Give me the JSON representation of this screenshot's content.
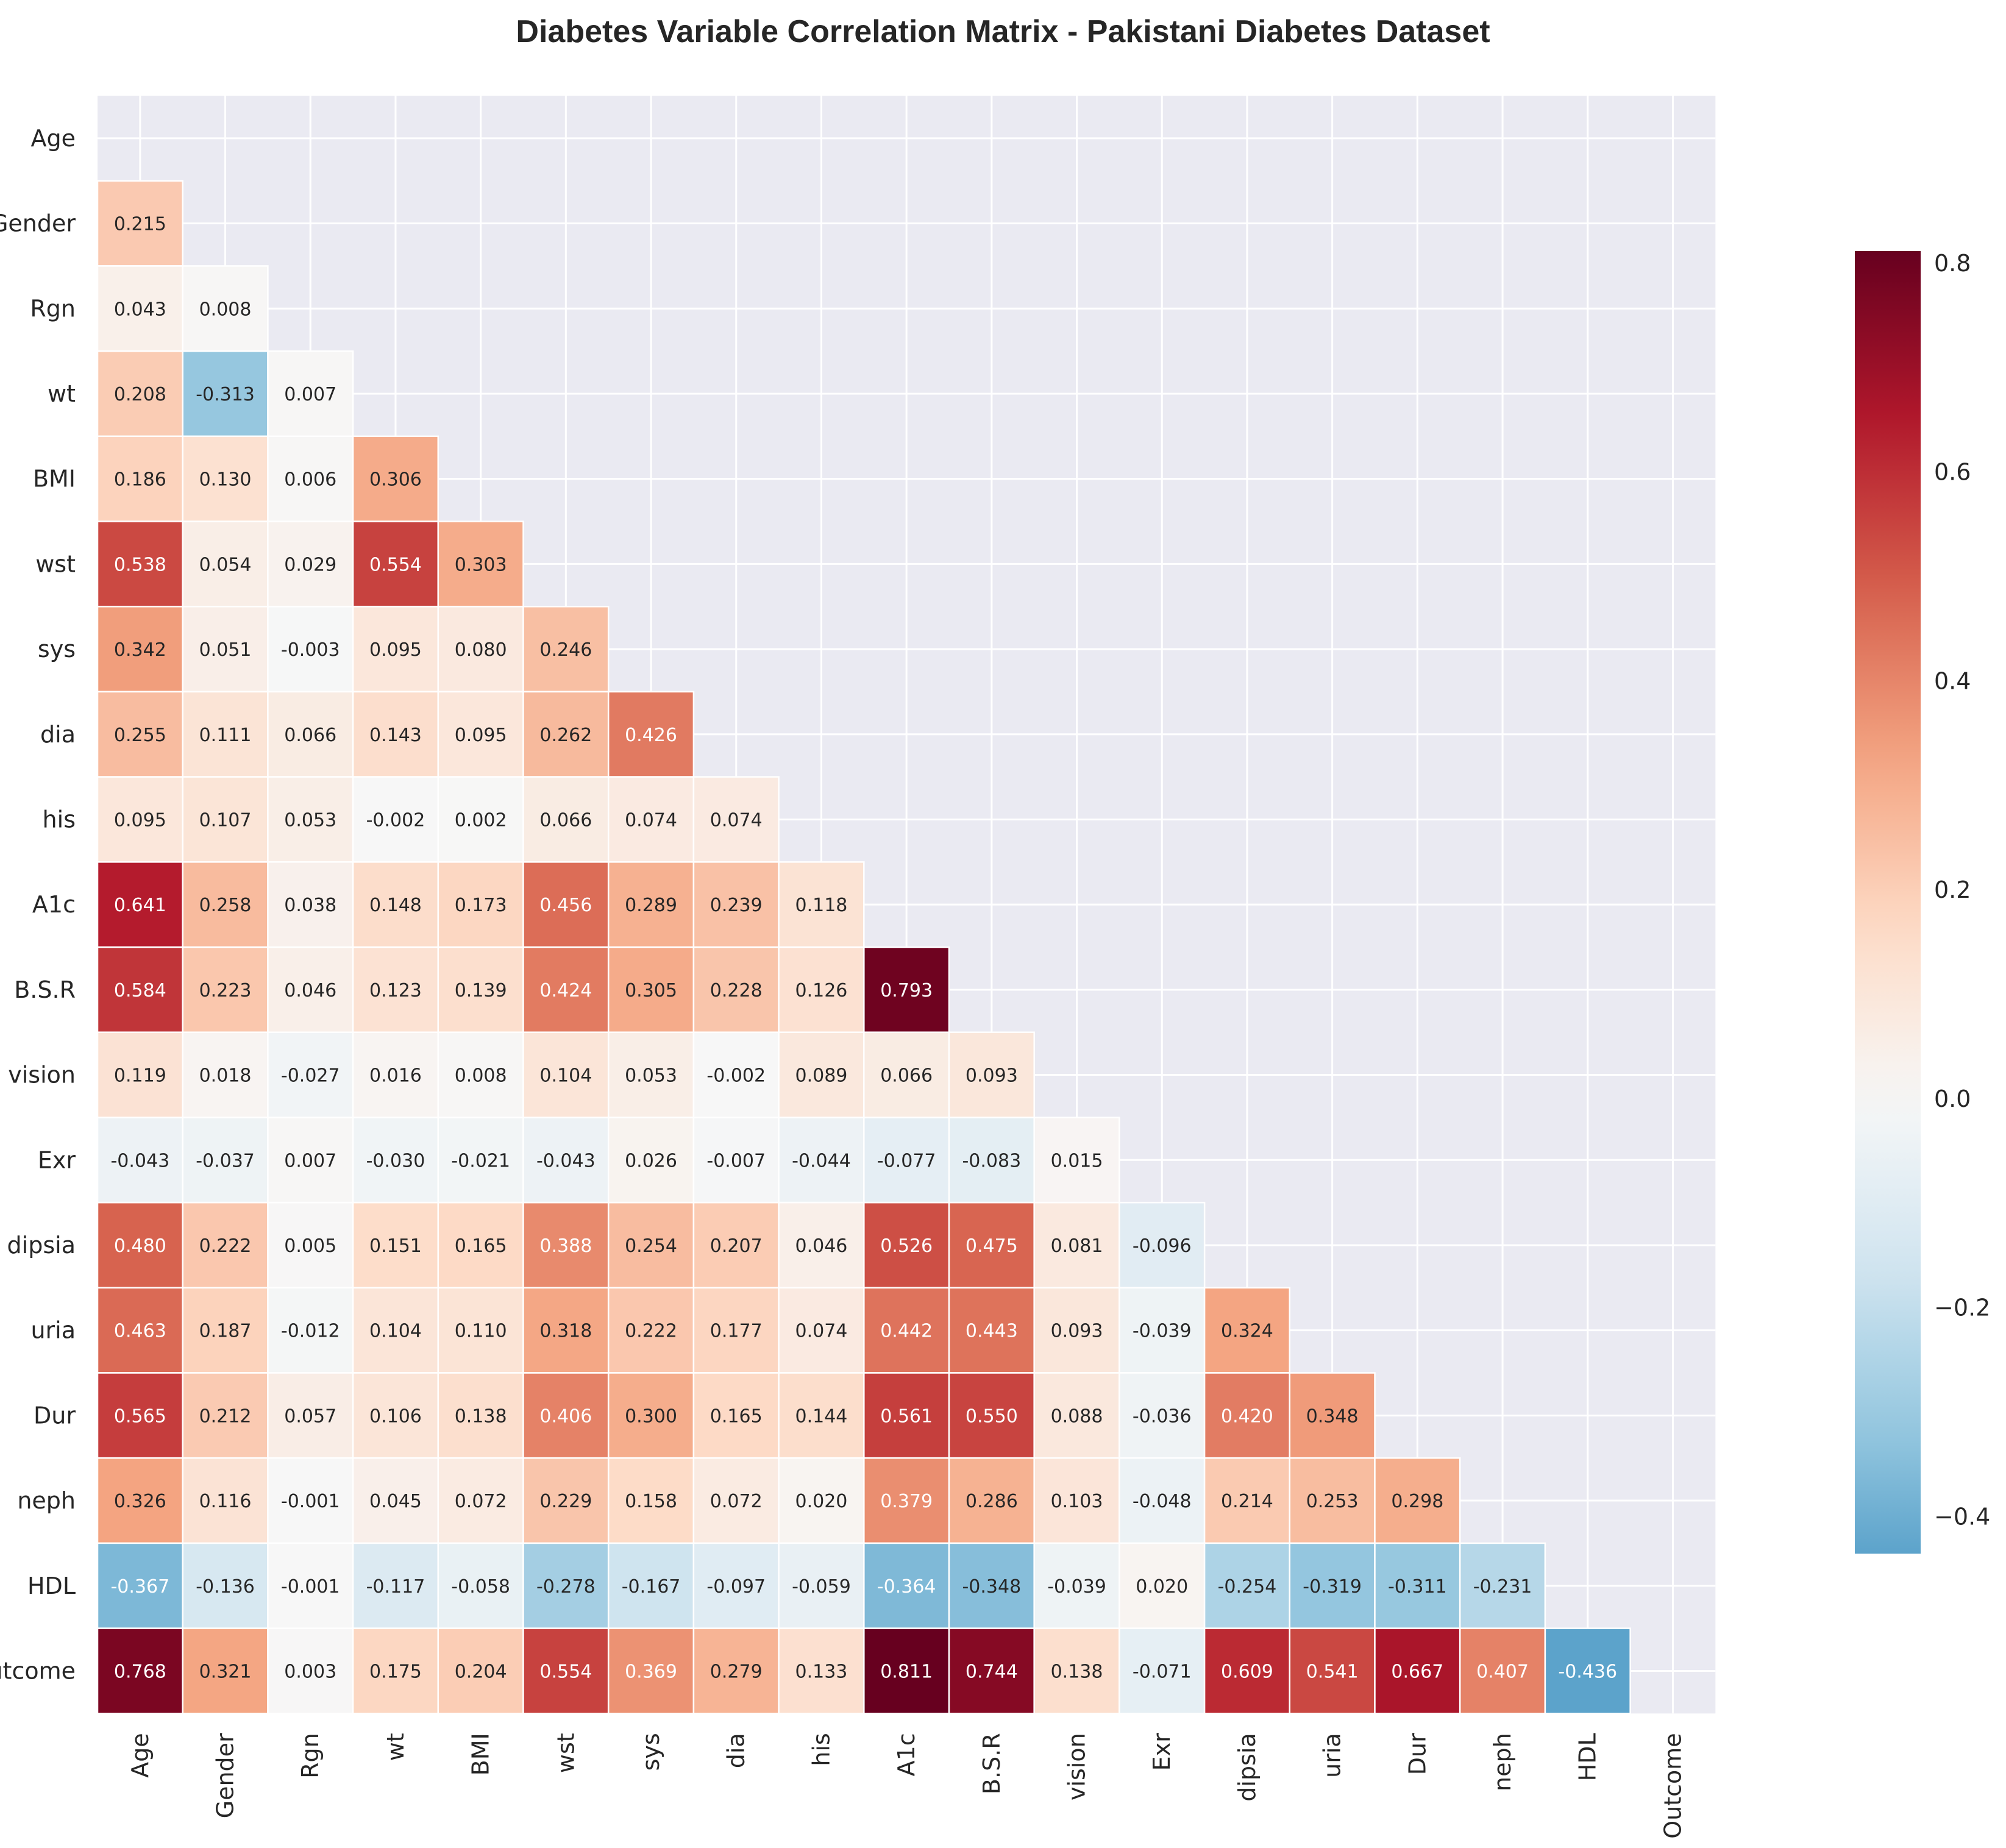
{
  "chart_data": {
    "type": "heatmap",
    "title": "Diabetes Variable Correlation Matrix - Pakistani Diabetes Dataset",
    "xlabel": "",
    "ylabel": "",
    "labels": [
      "Age",
      "Gender",
      "Rgn",
      "wt",
      "BMI",
      "wst",
      "sys",
      "dia",
      "his",
      "A1c",
      "B.S.R",
      "vision",
      "Exr",
      "dipsia",
      "uria",
      "Dur",
      "neph",
      "HDL",
      "Outcome"
    ],
    "mask": "upper triangle incl. diagonal",
    "cells": [
      [],
      [
        "0.215"
      ],
      [
        "0.043",
        "0.008"
      ],
      [
        "0.208",
        "-0.313",
        "0.007"
      ],
      [
        "0.186",
        "0.130",
        "0.006",
        "0.306"
      ],
      [
        "0.538",
        "0.054",
        "0.029",
        "0.554",
        "0.303"
      ],
      [
        "0.342",
        "0.051",
        "-0.003",
        "0.095",
        "0.080",
        "0.246"
      ],
      [
        "0.255",
        "0.111",
        "0.066",
        "0.143",
        "0.095",
        "0.262",
        "0.426"
      ],
      [
        "0.095",
        "0.107",
        "0.053",
        "-0.002",
        "0.002",
        "0.066",
        "0.074",
        "0.074"
      ],
      [
        "0.641",
        "0.258",
        "0.038",
        "0.148",
        "0.173",
        "0.456",
        "0.289",
        "0.239",
        "0.118"
      ],
      [
        "0.584",
        "0.223",
        "0.046",
        "0.123",
        "0.139",
        "0.424",
        "0.305",
        "0.228",
        "0.126",
        "0.793"
      ],
      [
        "0.119",
        "0.018",
        "-0.027",
        "0.016",
        "0.008",
        "0.104",
        "0.053",
        "-0.002",
        "0.089",
        "0.066",
        "0.093"
      ],
      [
        "-0.043",
        "-0.037",
        "0.007",
        "-0.030",
        "-0.021",
        "-0.043",
        "0.026",
        "-0.007",
        "-0.044",
        "-0.077",
        "-0.083",
        "0.015"
      ],
      [
        "0.480",
        "0.222",
        "0.005",
        "0.151",
        "0.165",
        "0.388",
        "0.254",
        "0.207",
        "0.046",
        "0.526",
        "0.475",
        "0.081",
        "-0.096"
      ],
      [
        "0.463",
        "0.187",
        "-0.012",
        "0.104",
        "0.110",
        "0.318",
        "0.222",
        "0.177",
        "0.074",
        "0.442",
        "0.443",
        "0.093",
        "-0.039",
        "0.324"
      ],
      [
        "0.565",
        "0.212",
        "0.057",
        "0.106",
        "0.138",
        "0.406",
        "0.300",
        "0.165",
        "0.144",
        "0.561",
        "0.550",
        "0.088",
        "-0.036",
        "0.420",
        "0.348"
      ],
      [
        "0.326",
        "0.116",
        "-0.001",
        "0.045",
        "0.072",
        "0.229",
        "0.158",
        "0.072",
        "0.020",
        "0.379",
        "0.286",
        "0.103",
        "-0.048",
        "0.214",
        "0.253",
        "0.298"
      ],
      [
        "-0.367",
        "-0.136",
        "-0.001",
        "-0.117",
        "-0.058",
        "-0.278",
        "-0.167",
        "-0.097",
        "-0.059",
        "-0.364",
        "-0.348",
        "-0.039",
        "0.020",
        "-0.254",
        "-0.319",
        "-0.311",
        "-0.231"
      ],
      [
        "0.768",
        "0.321",
        "0.003",
        "0.175",
        "0.204",
        "0.554",
        "0.369",
        "0.279",
        "0.133",
        "0.811",
        "0.744",
        "0.138",
        "-0.071",
        "0.609",
        "0.541",
        "0.667",
        "0.407",
        "-0.436"
      ]
    ],
    "colorbar": {
      "colormap": "RdBu_r",
      "range": [
        -0.436,
        0.811
      ],
      "ticks": [
        "0.8",
        "0.6",
        "0.4",
        "0.2",
        "0.0",
        "−0.2",
        "−0.4"
      ],
      "tick_values": [
        0.8,
        0.6,
        0.4,
        0.2,
        0.0,
        -0.2,
        -0.4
      ]
    },
    "grid": true
  }
}
